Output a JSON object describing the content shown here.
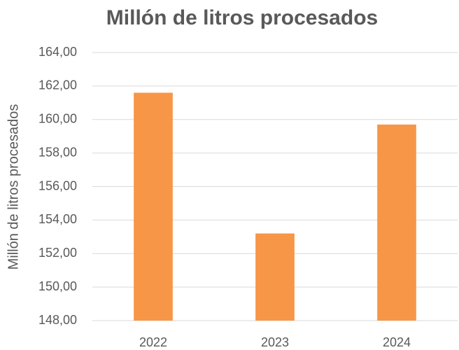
{
  "chart_data": {
    "type": "bar",
    "title": "Millón de litros procesados",
    "y_label": "Millón de litros procesados",
    "categories": [
      "2022",
      "2023",
      "2024"
    ],
    "values": [
      161.6,
      153.2,
      159.7
    ],
    "color": "#f79646",
    "ylim": [
      148,
      164
    ],
    "yticks": [
      {
        "value": 148,
        "label": "148,00"
      },
      {
        "value": 150,
        "label": "150,00"
      },
      {
        "value": 152,
        "label": "152,00"
      },
      {
        "value": 154,
        "label": "154,00"
      },
      {
        "value": 156,
        "label": "156,00"
      },
      {
        "value": 158,
        "label": "158,00"
      },
      {
        "value": 160,
        "label": "160,00"
      },
      {
        "value": 162,
        "label": "162,00"
      },
      {
        "value": 164,
        "label": "164,00"
      }
    ],
    "grid": true
  }
}
